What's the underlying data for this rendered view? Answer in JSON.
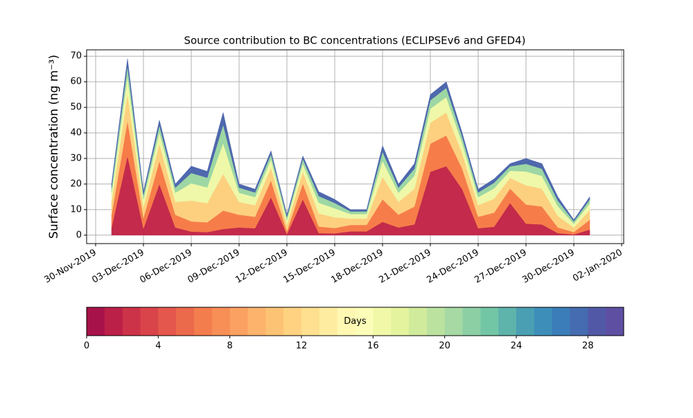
{
  "chart_data": {
    "type": "stacked-area",
    "title": "Source contribution to BC concentrations (ECLIPSEv6 and GFED4)",
    "y_label": "Surface concentration (ng m⁻³)",
    "x": [
      "2019-12-01T00:00",
      "2019-12-02T00:00",
      "2019-12-03T00:00",
      "2019-12-04T00:00",
      "2019-12-05T00:00",
      "2019-12-06T00:00",
      "2019-12-07T00:00",
      "2019-12-08T00:00",
      "2019-12-09T00:00",
      "2019-12-10T00:00",
      "2019-12-11T00:00",
      "2019-12-12T00:00",
      "2019-12-13T00:00",
      "2019-12-14T00:00",
      "2019-12-15T00:00",
      "2019-12-16T00:00",
      "2019-12-17T00:00",
      "2019-12-18T00:00",
      "2019-12-19T00:00",
      "2019-12-20T00:00",
      "2019-12-21T00:00",
      "2019-12-22T00:00",
      "2019-12-23T00:00",
      "2019-12-24T00:00",
      "2019-12-25T00:00",
      "2019-12-26T00:00",
      "2019-12-27T00:00",
      "2019-12-28T00:00",
      "2019-12-29T00:00",
      "2019-12-30T00:00",
      "2019-12-31T00:00"
    ],
    "series": [
      {
        "color": "#c32a4b",
        "values": [
          3,
          31,
          2.6,
          20,
          3,
          1.4,
          1.2,
          2.4,
          3,
          2.7,
          14.8,
          0.4,
          14,
          0.8,
          0.7,
          1.5,
          1.5,
          5.2,
          3,
          4.2,
          24.8,
          27,
          18,
          2.7,
          3.3,
          12.6,
          4.5,
          4.2,
          0.8,
          0.3,
          2.2
        ]
      },
      {
        "color": "#f67d4a",
        "values": [
          5,
          13.8,
          4.2,
          9,
          5,
          4,
          3.8,
          7.2,
          5,
          4.5,
          6.6,
          1.2,
          6.2,
          2.6,
          2.1,
          2.5,
          2.5,
          8.8,
          5,
          7,
          11,
          12,
          8,
          4.5,
          5.5,
          5.6,
          7.5,
          7,
          2.2,
          0.9,
          3.8
        ]
      },
      {
        "color": "#fdd07f",
        "values": [
          5,
          10.4,
          4.2,
          6.8,
          5,
          8.1,
          7.5,
          14.4,
          5,
          4.5,
          5,
          2.4,
          4.6,
          5.1,
          4.2,
          2.5,
          2.5,
          8.8,
          5,
          7,
          8.2,
          9,
          6,
          4.5,
          5.5,
          4.2,
          7.5,
          7,
          4.5,
          1.8,
          3.8
        ]
      },
      {
        "color": "#eef8a8",
        "values": [
          3.6,
          6.9,
          3.1,
          4.5,
          3.6,
          6.8,
          6.2,
          12,
          3.6,
          3.2,
          3.3,
          2,
          3.1,
          4.2,
          3.5,
          1.8,
          1.8,
          6.3,
          3.6,
          5,
          5.5,
          6,
          4,
          3.2,
          4,
          2.8,
          5.4,
          5,
          3.8,
          1.5,
          2.7
        ]
      },
      {
        "color": "#9dd7a4",
        "values": [
          2,
          4.1,
          1.7,
          2.7,
          2,
          4,
          3.8,
          7.2,
          2,
          1.8,
          2,
          1.2,
          1.9,
          2.6,
          2.1,
          1,
          1,
          3.5,
          2,
          2.8,
          3.3,
          3.6,
          2.4,
          1.8,
          2.2,
          1.7,
          3,
          2.8,
          2.2,
          0.9,
          1.5
        ]
      },
      {
        "color": "#4e68ad",
        "values": [
          1.4,
          2.8,
          1.2,
          2,
          1.4,
          2.7,
          2.5,
          4.8,
          1.4,
          1.3,
          1.3,
          0.8,
          1.2,
          1.7,
          1.4,
          0.7,
          0.7,
          2.4,
          1.4,
          2,
          2.2,
          2.4,
          1.6,
          1.3,
          1.5,
          1.1,
          2.1,
          2,
          1.5,
          0.6,
          1
        ]
      }
    ],
    "xlim": [
      "2019-11-29T10:26",
      "2020-01-02T03:08"
    ],
    "xticks": [
      {
        "value": "2019-11-30T00:00",
        "label": "30-Nov-2019"
      },
      {
        "value": "2019-12-03T00:00",
        "label": "03-Dec-2019"
      },
      {
        "value": "2019-12-06T00:00",
        "label": "06-Dec-2019"
      },
      {
        "value": "2019-12-09T00:00",
        "label": "09-Dec-2019"
      },
      {
        "value": "2019-12-12T00:00",
        "label": "12-Dec-2019"
      },
      {
        "value": "2019-12-15T00:00",
        "label": "15-Dec-2019"
      },
      {
        "value": "2019-12-18T00:00",
        "label": "18-Dec-2019"
      },
      {
        "value": "2019-12-21T00:00",
        "label": "21-Dec-2019"
      },
      {
        "value": "2019-12-24T00:00",
        "label": "24-Dec-2019"
      },
      {
        "value": "2019-12-27T00:00",
        "label": "27-Dec-2019"
      },
      {
        "value": "2019-12-30T00:00",
        "label": "30-Dec-2019"
      },
      {
        "value": "2020-01-02T00:00",
        "label": "02-Jan-2020"
      }
    ],
    "ylim": [
      -3.3,
      72.5
    ],
    "yticks": [
      0,
      10,
      20,
      30,
      40,
      50,
      60,
      70
    ],
    "grid": true,
    "colorbar": {
      "label": "Days",
      "lim": [
        0,
        30
      ],
      "ticks": [
        0,
        4,
        8,
        12,
        16,
        20,
        24,
        28
      ],
      "colors": [
        "#a8124a",
        "#bb2048",
        "#cc3248",
        "#d9444b",
        "#e4574d",
        "#ec6a4c",
        "#f47d4d",
        "#f78f56",
        "#fba161",
        "#fdb36c",
        "#fdc374",
        "#fed281",
        "#fee090",
        "#feeda0",
        "#fff8b2",
        "#fbfdb8",
        "#f1f9a9",
        "#e4f39e",
        "#d1eb9c",
        "#bce2a0",
        "#a6d9a4",
        "#8ccfa4",
        "#73c6a5",
        "#5eb3ab",
        "#4b9fb3",
        "#3d8fba",
        "#3a7db8",
        "#456bb0",
        "#5159a7",
        "#5e4fa2"
      ]
    }
  }
}
